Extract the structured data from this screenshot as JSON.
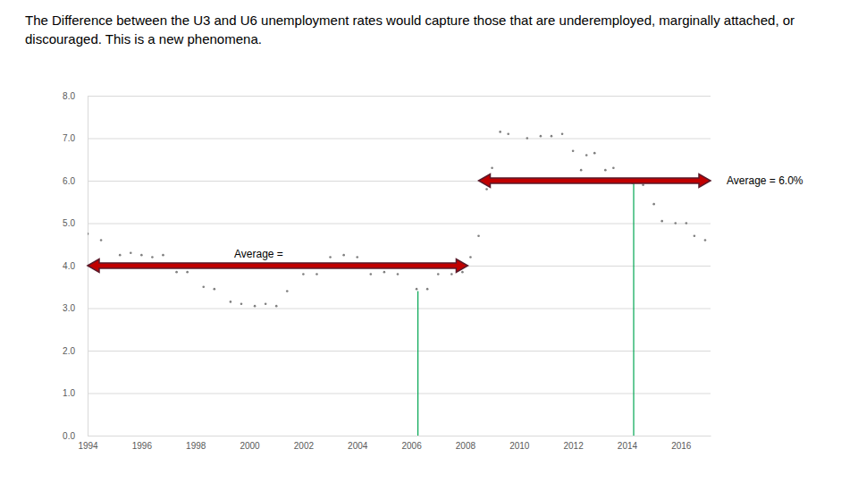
{
  "chart_data": {
    "type": "scatter",
    "title": "The Difference between the U3 and U6 unemployment rates would capture those that are underemployed, marginally attached, or discouraged. This is a new phenomena.",
    "x": [
      1994.0,
      1994.5,
      1995.2,
      1995.6,
      1996.0,
      1996.4,
      1996.8,
      1997.3,
      1997.7,
      1998.3,
      1998.7,
      1999.3,
      1999.7,
      2000.2,
      2000.6,
      2001.0,
      2001.4,
      2002.0,
      2002.5,
      2003.0,
      2003.5,
      2004.0,
      2004.5,
      2005.0,
      2005.5,
      2006.2,
      2006.6,
      2007.0,
      2007.5,
      2007.9,
      2008.2,
      2008.5,
      2008.8,
      2009.0,
      2009.3,
      2009.6,
      2010.3,
      2010.8,
      2011.2,
      2011.6,
      2012.0,
      2012.3,
      2012.5,
      2012.8,
      2013.2,
      2013.5,
      2014.2,
      2014.6,
      2015.0,
      2015.3,
      2015.8,
      2016.2,
      2016.5,
      2016.9
    ],
    "values": [
      4.75,
      4.6,
      4.25,
      4.3,
      4.25,
      4.2,
      4.25,
      3.85,
      3.85,
      3.5,
      3.45,
      3.15,
      3.1,
      3.05,
      3.1,
      3.05,
      3.4,
      3.8,
      3.8,
      4.2,
      4.25,
      4.2,
      3.8,
      3.85,
      3.8,
      3.45,
      3.45,
      3.8,
      3.8,
      3.85,
      4.2,
      4.7,
      5.8,
      6.3,
      7.15,
      7.1,
      7.0,
      7.05,
      7.05,
      7.1,
      6.7,
      6.25,
      6.6,
      6.65,
      6.25,
      6.3,
      5.95,
      5.9,
      5.45,
      5.05,
      5.0,
      5.0,
      4.7,
      4.6
    ],
    "color": "#7f7f7f",
    "marker": "dot",
    "xlim": [
      1994,
      2017.1
    ],
    "xticks": [
      1994,
      1996,
      1998,
      2000,
      2002,
      2004,
      2006,
      2008,
      2010,
      2012,
      2014,
      2016
    ],
    "ylim": [
      0,
      8
    ],
    "yticks": [
      {
        "value": 0,
        "label": "0.0"
      },
      {
        "value": 1,
        "label": "1.0"
      },
      {
        "value": 2,
        "label": "2.0"
      },
      {
        "value": 3,
        "label": "3.0"
      },
      {
        "value": 4,
        "label": "4.0"
      },
      {
        "value": 5,
        "label": "5.0"
      },
      {
        "value": 6,
        "label": "6.0"
      },
      {
        "value": 7,
        "label": "7.0"
      },
      {
        "value": 8,
        "label": "8.0"
      }
    ],
    "grid": true,
    "annotations": [
      {
        "text": "Average =",
        "x_start": 1994,
        "x_end": 2008.1,
        "y": 4.0,
        "color": "#c00000"
      },
      {
        "text": "Average = 6.0%",
        "x_start": 2008.5,
        "x_end": 2017.1,
        "y": 6.0,
        "color": "#c00000"
      }
    ],
    "vlines": [
      {
        "x": 2006.25,
        "y_from": 0,
        "y_to": 3.4,
        "color": "#00a651"
      },
      {
        "x": 2014.25,
        "y_from": 0,
        "y_to": 5.95,
        "color": "#00a651"
      }
    ]
  }
}
